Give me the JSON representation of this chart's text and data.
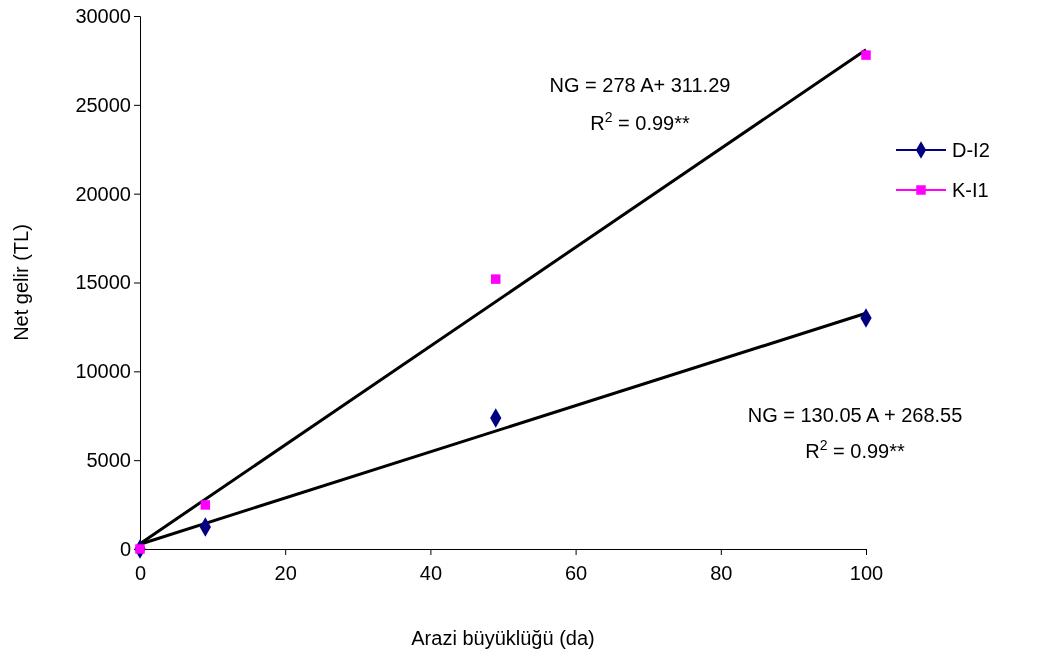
{
  "chart_data": {
    "type": "scatter",
    "xlabel": "Arazi büyüklüğü (da)",
    "ylabel": "Net gelir (TL)",
    "xlim": [
      0,
      100
    ],
    "xticks": [
      0,
      20,
      40,
      60,
      80,
      100
    ],
    "ylim": [
      0,
      30000
    ],
    "yticks": [
      0,
      5000,
      10000,
      15000,
      20000,
      25000,
      30000
    ],
    "grid": false,
    "legend": "right",
    "series": [
      {
        "name": "D-I2",
        "type": "scatter",
        "marker": "diamond",
        "color": "#000080",
        "x": [
          0,
          9,
          49,
          100
        ],
        "values": [
          0,
          1240,
          7370,
          13000
        ]
      },
      {
        "name": "K-I1",
        "type": "scatter",
        "marker": "square",
        "color": "#ff00ff",
        "x": [
          0,
          9,
          49,
          100
        ],
        "values": [
          0,
          2480,
          15190,
          27800
        ]
      },
      {
        "type": "line",
        "color": "#000000",
        "x": [
          0,
          100
        ],
        "values": [
          300,
          28100
        ]
      },
      {
        "type": "line",
        "color": "#000000",
        "x": [
          0,
          100
        ],
        "values": [
          270,
          13270
        ]
      }
    ],
    "annotations": [
      "NG = 278 A+ 311.29",
      "R$^{2}$ = 0.99**",
      "NG = 130.05 A + 268.55",
      "R$^{2}$ = 0.99**"
    ]
  }
}
